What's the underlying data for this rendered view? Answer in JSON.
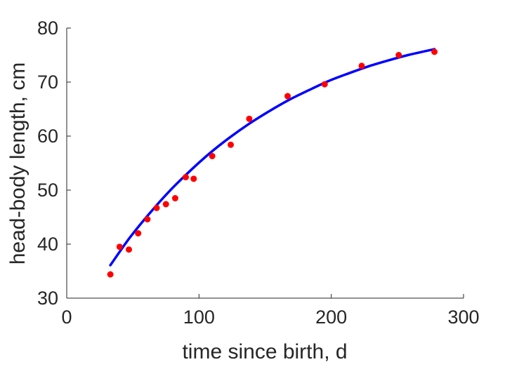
{
  "chart_data": {
    "type": "scatter",
    "title": "",
    "xlabel": "time since birth, d",
    "ylabel": "head-body length, cm",
    "xlim": [
      0,
      300
    ],
    "ylim": [
      30,
      80
    ],
    "xticks": [
      0,
      100,
      200,
      300
    ],
    "yticks": [
      30,
      40,
      50,
      60,
      70,
      80
    ],
    "grid": false,
    "legend": "none",
    "series": [
      {
        "kind": "points",
        "color": "#ff0000",
        "x": [
          33,
          40,
          47,
          54,
          61,
          68,
          75,
          82,
          90,
          96,
          110,
          124,
          138,
          167,
          195,
          223,
          251,
          278
        ],
        "y": [
          34.4,
          39.5,
          39.0,
          42.0,
          44.6,
          46.7,
          47.4,
          48.5,
          52.4,
          52.1,
          56.3,
          58.4,
          63.2,
          67.4,
          69.6,
          73.0,
          75.0,
          75.6
        ]
      },
      {
        "kind": "line",
        "color": "#0000ff",
        "x": [
          33,
          48,
          63,
          78,
          93,
          108,
          123,
          138,
          153,
          168,
          183,
          198,
          213,
          228,
          243,
          258,
          278
        ],
        "y": [
          36.1,
          41.3,
          45.8,
          49.9,
          53.5,
          56.8,
          59.7,
          62.3,
          64.6,
          66.7,
          68.5,
          70.2,
          71.6,
          72.9,
          74.0,
          75.0,
          76.1
        ]
      }
    ]
  }
}
